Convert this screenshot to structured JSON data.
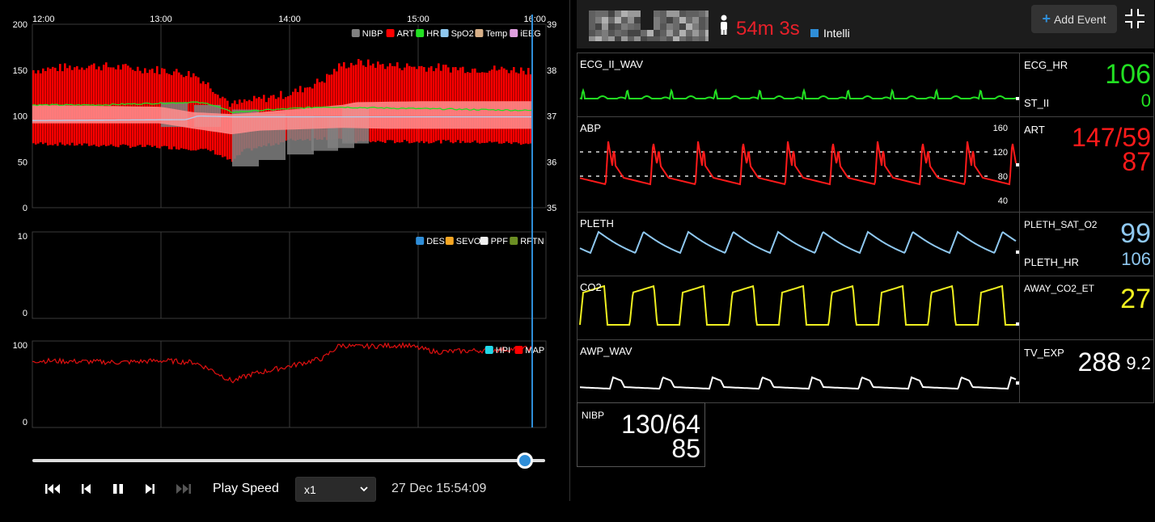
{
  "trend": {
    "time_labels": [
      "12:00",
      "13:00",
      "14:00",
      "15:00",
      "16:00"
    ],
    "chart1": {
      "left_ticks": [
        "200",
        "150",
        "100",
        "50",
        "0"
      ],
      "right_ticks": [
        "39",
        "38",
        "37",
        "36",
        "35"
      ],
      "legend": [
        {
          "label": "NIBP",
          "color": "#808080"
        },
        {
          "label": "ART",
          "color": "#ff0000"
        },
        {
          "label": "HR",
          "color": "#22e022"
        },
        {
          "label": "SpO2",
          "color": "#8fc8f0"
        },
        {
          "label": "Temp",
          "color": "#d8b088"
        },
        {
          "label": "iEEG",
          "color": "#e0a0e0"
        }
      ]
    },
    "chart2": {
      "left_ticks": [
        "10",
        "0"
      ],
      "legend": [
        {
          "label": "DES",
          "color": "#2f8ed8"
        },
        {
          "label": "SEVO",
          "color": "#f5a623"
        },
        {
          "label": "PPF",
          "color": "#f0f0f0"
        },
        {
          "label": "RFTN",
          "color": "#6b8e23"
        }
      ]
    },
    "chart3": {
      "left_ticks": [
        "100",
        "0"
      ],
      "legend": [
        {
          "label": "HPI",
          "color": "#22d8e8"
        },
        {
          "label": "MAP",
          "color": "#ff0000"
        }
      ]
    }
  },
  "playback": {
    "progress": 0.961,
    "play_speed_label": "Play Speed",
    "speed_value": "x1",
    "timestamp": "27 Dec 15:54:09"
  },
  "header": {
    "elapsed": "54m 3s",
    "intelli": "Intelli",
    "add_event": "Add Event"
  },
  "waves": [
    {
      "label": "ECG_II_WAV",
      "color": "#22e022",
      "params": [
        {
          "label": "ECG_HR",
          "value": "106"
        },
        {
          "label": "ST_II",
          "value": "0"
        }
      ]
    },
    {
      "label": "ABP",
      "color": "#ff1a1a",
      "scale": [
        "160",
        "120",
        "80",
        "40"
      ],
      "params": [
        {
          "label": "ART",
          "value": "147/59",
          "mean": "87"
        }
      ]
    },
    {
      "label": "PLETH",
      "color": "#8fc8f0",
      "params": [
        {
          "label": "PLETH_SAT_O2",
          "value": "99"
        },
        {
          "label": "PLETH_HR",
          "value": "106"
        }
      ]
    },
    {
      "label": "CO2",
      "color": "#f0f020",
      "params": [
        {
          "label": "AWAY_CO2_ET",
          "value": "27"
        }
      ]
    },
    {
      "label": "AWP_WAV",
      "color": "#ffffff",
      "params": [
        {
          "label": "TV_EXP",
          "value": "288",
          "extra": "9.2"
        }
      ]
    }
  ],
  "nibp": {
    "label": "NIBP",
    "value": "130/64",
    "mean": "85"
  }
}
